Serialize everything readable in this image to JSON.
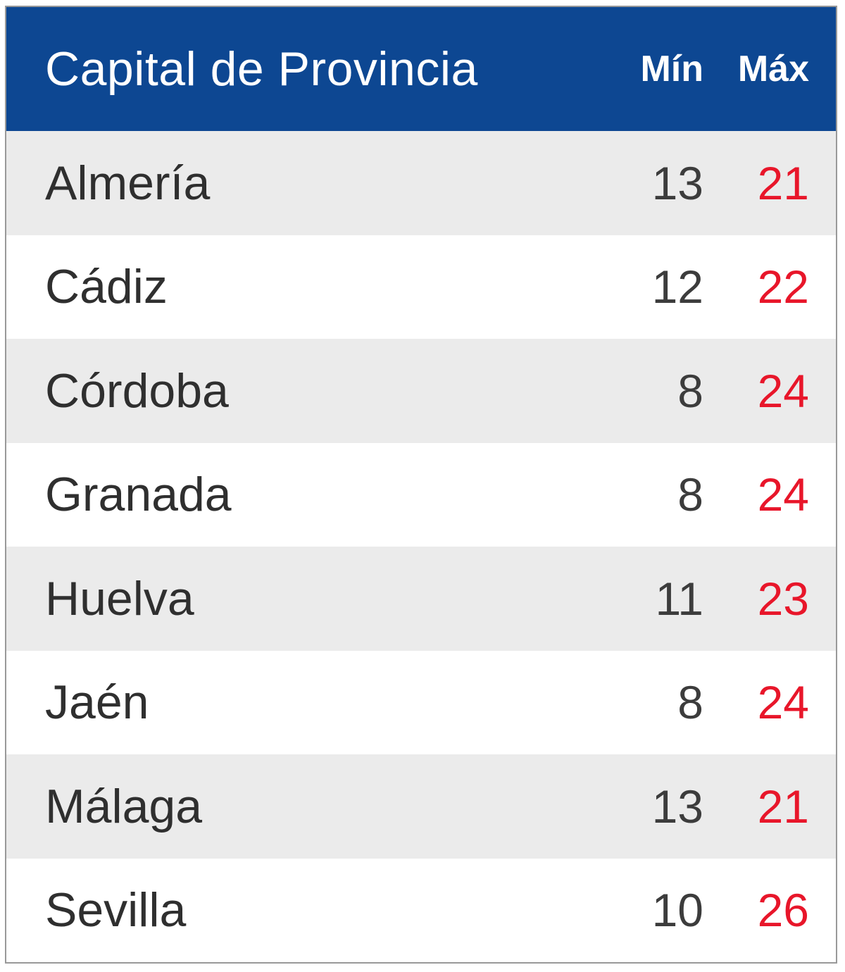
{
  "table": {
    "header": {
      "capital_label": "Capital de Provincia",
      "min_label": "Mín",
      "max_label": "Máx"
    },
    "rows": [
      {
        "city": "Almería",
        "min": "13",
        "max": "21"
      },
      {
        "city": "Cádiz",
        "min": "12",
        "max": "22"
      },
      {
        "city": "Córdoba",
        "min": "8",
        "max": "24"
      },
      {
        "city": "Granada",
        "min": "8",
        "max": "24"
      },
      {
        "city": "Huelva",
        "min": "11",
        "max": "23"
      },
      {
        "city": "Jaén",
        "min": "8",
        "max": "24"
      },
      {
        "city": "Málaga",
        "min": "13",
        "max": "21"
      },
      {
        "city": "Sevilla",
        "min": "10",
        "max": "26"
      }
    ]
  },
  "colors": {
    "header_bg": "#0d4792",
    "header_text": "#ffffff",
    "row_alt_bg": "#ebebeb",
    "row_bg": "#ffffff",
    "city_text": "#2f2f2f",
    "min_text": "#3c3c3c",
    "max_text": "#e8162a",
    "border": "#999999"
  }
}
